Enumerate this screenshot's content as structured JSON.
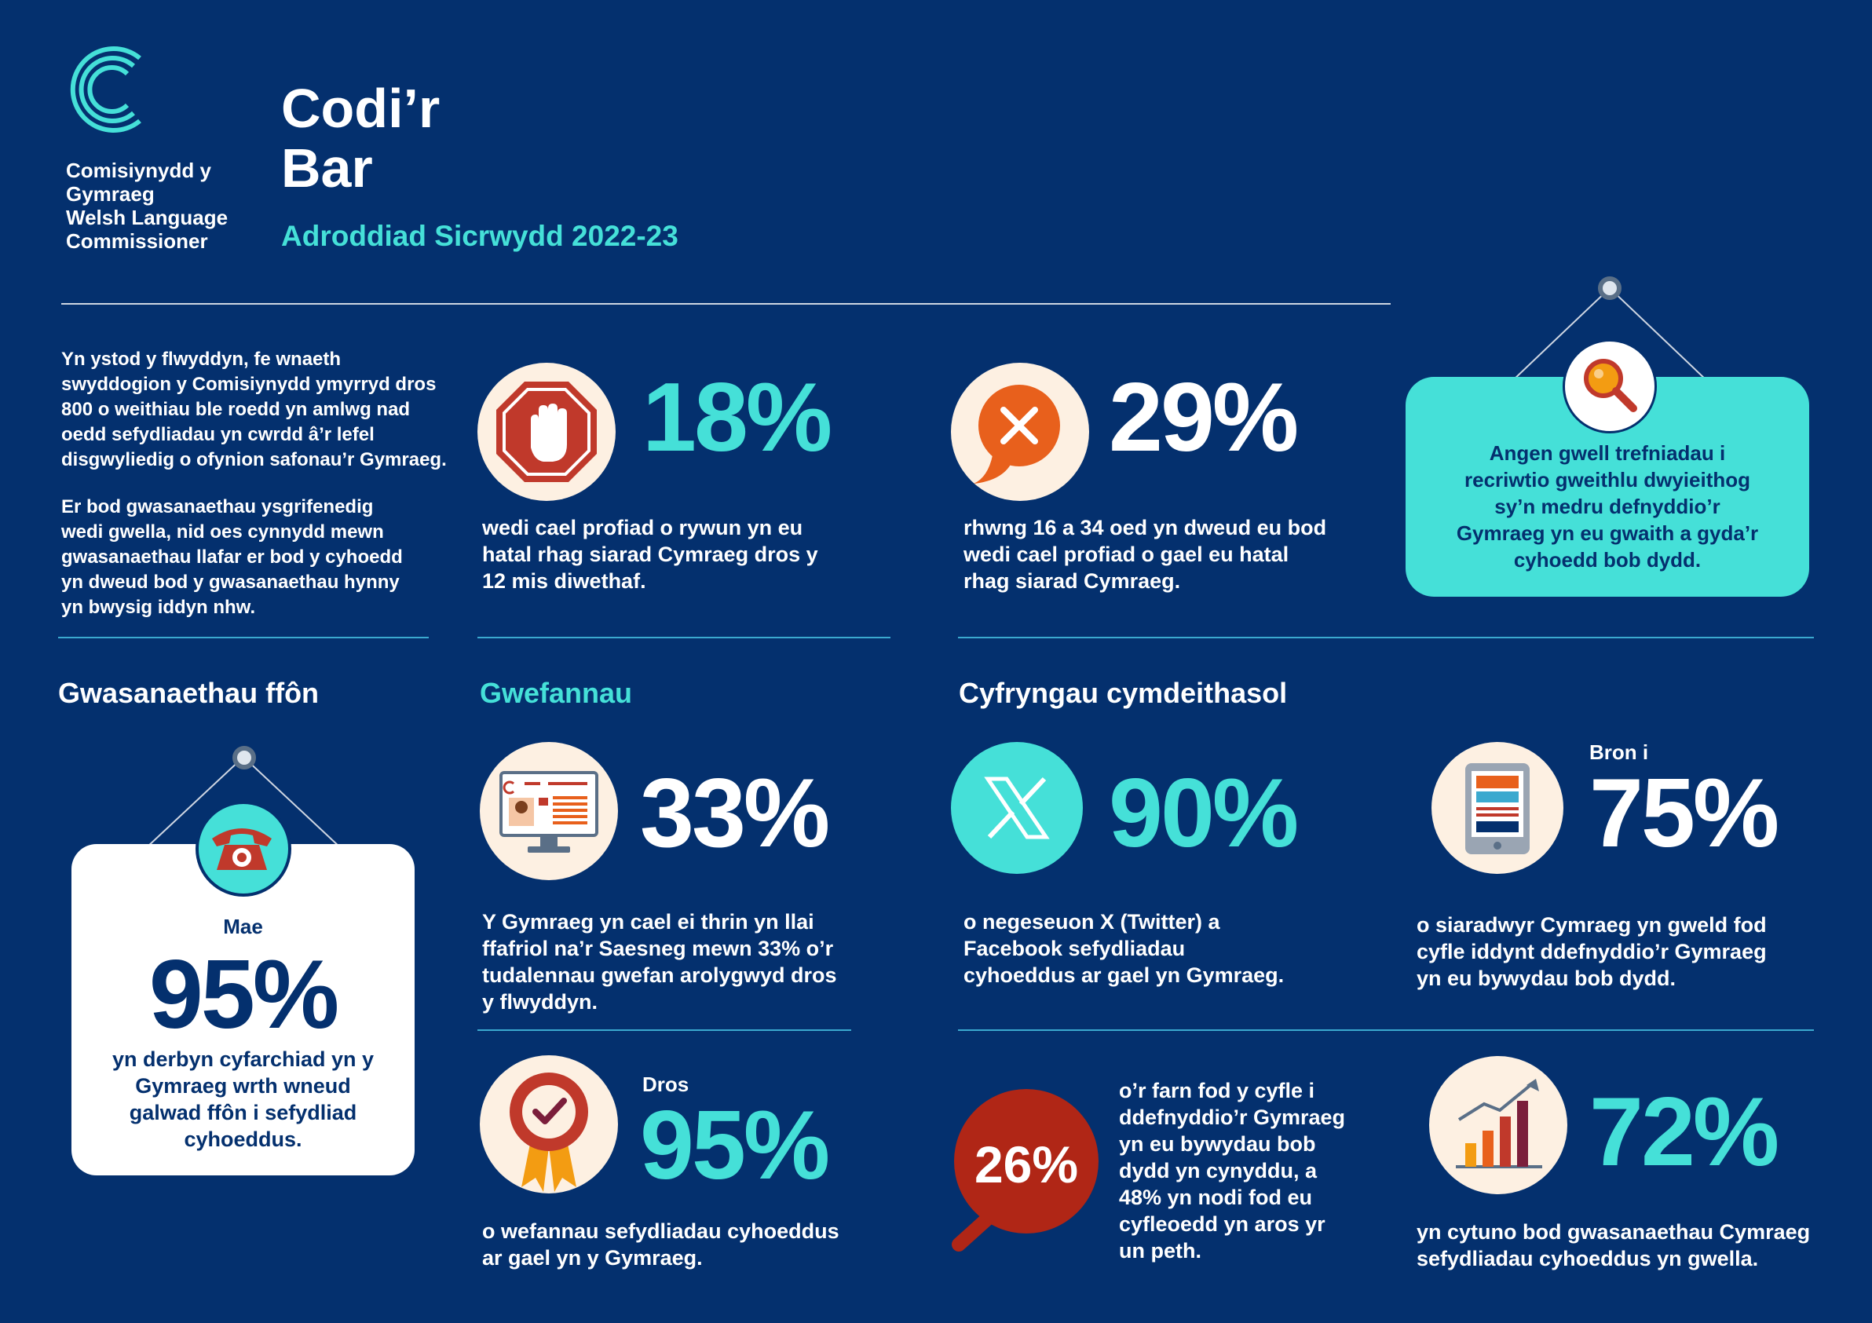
{
  "logo": {
    "line1": "Comisiynydd y",
    "line2": "Gymraeg",
    "line3": "Welsh Language",
    "line4": "Commissioner"
  },
  "header": {
    "title_line1": "Codi’r",
    "title_line2": "Bar",
    "subtitle": "Adroddiad Sicrwydd 2022-23"
  },
  "intro": {
    "para1": [
      "Yn ystod y flwyddyn, fe wnaeth",
      "swyddogion y Comisiynydd ymyrryd dros",
      "800 o weithiau ble roedd yn amlwg nad",
      "oedd sefydliadau yn cwrdd â’r lefel",
      "disgwyliedig o ofynion safonau’r Gymraeg."
    ],
    "para2": [
      "Er bod gwasanaethau ysgrifenedig",
      "wedi gwella, nid oes cynnydd mewn",
      "gwasanaethau llafar er bod y cyhoedd",
      "yn dweud bod y gwasanaethau hynny",
      "yn bwysig iddyn nhw."
    ]
  },
  "stat18": {
    "value": "18%",
    "desc": [
      "wedi cael profiad o rywun yn eu",
      "hatal rhag siarad Cymraeg dros y",
      "12 mis diwethaf."
    ]
  },
  "stat29": {
    "value": "29%",
    "desc": [
      "rhwng 16 a 34 oed yn dweud eu bod",
      "wedi cael profiad o gael eu hatal",
      "rhag siarad Cymraeg."
    ]
  },
  "callout": {
    "lines": [
      "Angen gwell trefniadau i",
      "recriwtio gweithlu dwyieithog",
      "sy’n medru defnyddio’r",
      "Gymraeg yn eu gwaith a gyda’r",
      "cyhoedd bob dydd."
    ]
  },
  "phone": {
    "heading": "Gwasanaethau ffôn",
    "prefix": "Mae",
    "value": "95%",
    "desc": [
      "yn derbyn cyfarchiad yn y",
      "Gymraeg wrth wneud",
      "galwad ffôn i sefydliad",
      "cyhoeddus."
    ]
  },
  "web": {
    "heading": "Gwefannau",
    "stat33": {
      "value": "33%",
      "desc": [
        "Y Gymraeg yn cael ei thrin yn llai",
        "ffafriol na’r Saesneg mewn 33% o’r",
        "tudalennau gwefan arolygwyd dros",
        "y flwyddyn."
      ]
    },
    "stat95": {
      "prefix": "Dros",
      "value": "95%",
      "desc": [
        "o wefannau sefydliadau cyhoeddus",
        "ar gael yn y Gymraeg."
      ]
    }
  },
  "social": {
    "heading": "Cyfryngau cymdeithasol",
    "stat90": {
      "value": "90%",
      "desc": [
        "o negeseuon X (Twitter) a",
        "Facebook sefydliadau",
        "cyhoeddus ar gael yn Gymraeg."
      ]
    },
    "stat75": {
      "prefix": "Bron i",
      "value": "75%",
      "desc": [
        "o siaradwyr Cymraeg yn gweld fod",
        "cyfle iddynt ddefnyddio’r Gymraeg",
        "yn eu bywydau bob dydd."
      ]
    },
    "stat26": {
      "value": "26%",
      "desc": [
        "o’r farn fod y cyfle i",
        "ddefnyddio’r Gymraeg",
        "yn eu bywydau bob",
        "dydd yn cynyddu, a",
        "48% yn nodi fod eu",
        "cyfleoedd yn aros yr",
        "un peth."
      ]
    },
    "stat72": {
      "value": "72%",
      "desc": [
        "yn cytuno bod gwasanaethau Cymraeg",
        "sefydliadau cyhoeddus yn gwella."
      ]
    }
  },
  "colors": {
    "background": "#04306e",
    "teal": "#45e0d8",
    "cream": "#fdf0e2",
    "red": "#c0392b"
  },
  "icons": [
    "logo-c-icon",
    "stop-hand-icon",
    "no-speech-icon",
    "magnifier-icon",
    "phone-icon",
    "web-page-icon",
    "x-logo-icon",
    "tablet-icon",
    "rosette-check-icon",
    "bar-chart-icon",
    "speech-magnifier-icon"
  ]
}
